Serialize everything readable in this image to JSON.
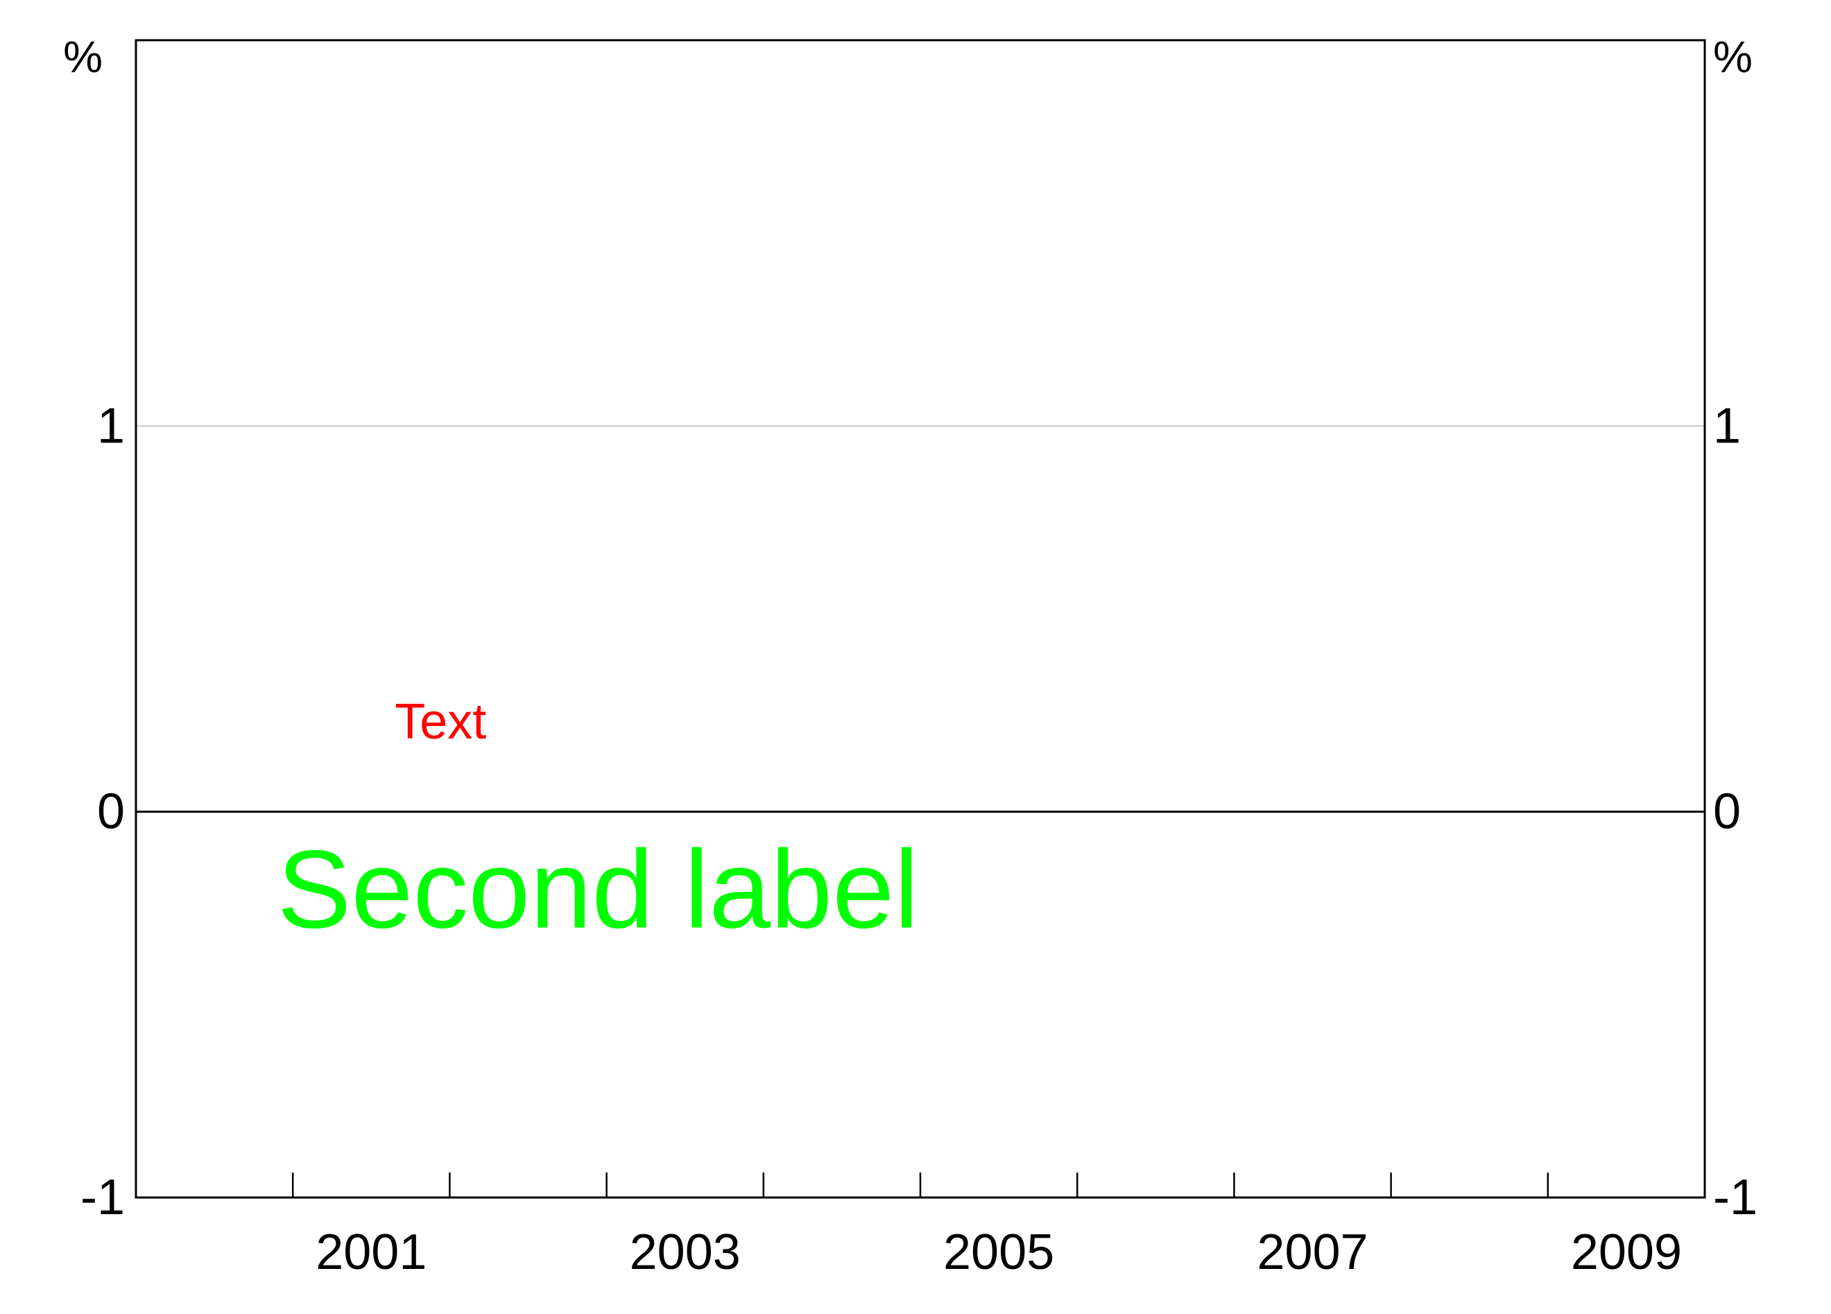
{
  "chart_data": {
    "type": "line",
    "title": "",
    "xlabel": "",
    "ylabel": "",
    "y_unit_left": "%",
    "y_unit_right": "%",
    "xlim": [
      2000,
      2010
    ],
    "ylim": [
      -1,
      2
    ],
    "y_ticks": [
      -1,
      0,
      1
    ],
    "y_tick_labels": [
      "-1",
      "0",
      "1"
    ],
    "x_minor_ticks": [
      2001,
      2002,
      2003,
      2004,
      2005,
      2006,
      2007,
      2008,
      2009
    ],
    "x_tick_labels": [
      {
        "label": "2001",
        "x": 2001.5
      },
      {
        "label": "2003",
        "x": 2003.5
      },
      {
        "label": "2005",
        "x": 2005.5
      },
      {
        "label": "2007",
        "x": 2007.5
      },
      {
        "label": "2009",
        "x": 2009.5
      }
    ],
    "gridlines_y": [
      1
    ],
    "zero_line": 0,
    "series": [],
    "annotations": [
      {
        "text": "Text",
        "color": "#ff0000",
        "x": 2001.65,
        "y": 0.19
      },
      {
        "text": "Second label",
        "color": "#00ff00",
        "x": 2000.9,
        "y": -0.3
      }
    ],
    "colors": {
      "frame": "#000000",
      "gridline": "#c8c8c8",
      "zero_line": "#000000",
      "text": "#000000"
    }
  }
}
